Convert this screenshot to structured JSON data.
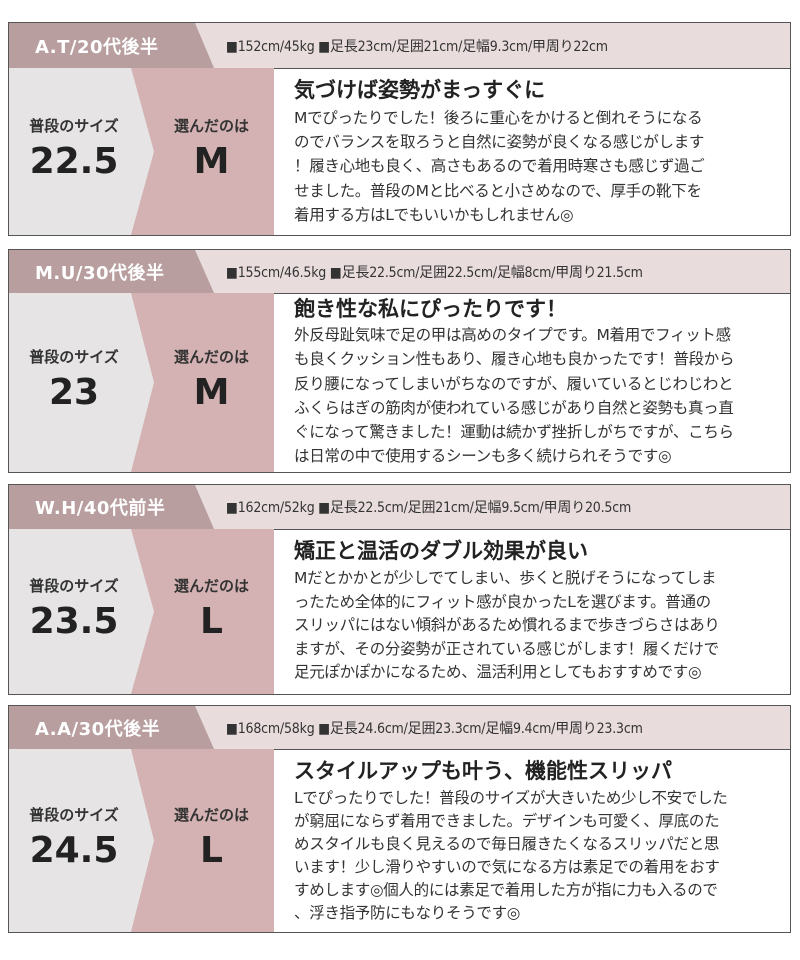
{
  "labels": {
    "usual_size": "普段のサイズ",
    "chosen": "選んだのは"
  },
  "colors": {
    "header_name_bg": "#b89e9f",
    "header_bg": "#e9dcdd",
    "usual_bg": "#e6e4e4",
    "chosen_bg": "#d4b2b3"
  },
  "reviews": [
    {
      "name": "A.T/20代後半",
      "stats": "■152cm/45kg ■足長23cm/足囲21cm/足幅9.3cm/甲周り22cm",
      "usual": "22.5",
      "chosen": "M",
      "title": "気づけば姿勢がまっすぐに",
      "lines": [
        "Mでぴったりでした！後ろに重心をかけると倒れそうになる",
        "のでバランスを取ろうと自然に姿勢が良くなる感じがします",
        "！履き心地も良く、高さもあるので着用時寒さも感じず過ご",
        "せました。普段のMと比べると小さめなので、厚手の靴下を",
        "着用する方はLでもいいかもしれません◎"
      ]
    },
    {
      "name": "M.U/30代後半",
      "stats": "■155cm/46.5kg ■足長22.5cm/足囲22.5cm/足幅8cm/甲周り21.5cm",
      "usual": "23",
      "chosen": "M",
      "title": "飽き性な私にぴったりです！",
      "lines": [
        "外反母趾気味で足の甲は高めのタイプです。M着用でフィット感",
        "も良くクッション性もあり、履き心地も良かったです！普段から",
        "反り腰になってしまいがちなのですが、履いているとじわじわと",
        "ふくらはぎの筋肉が使われている感じがあり自然と姿勢も真っ直",
        "ぐになって驚きました！運動は続かず挫折しがちですが、こちら",
        "は日常の中で使用するシーンも多く続けられそうです◎"
      ]
    },
    {
      "name": "W.H/40代前半",
      "stats": "■162cm/52kg ■足長22.5cm/足囲21cm/足幅9.5cm/甲周り20.5cm",
      "usual": "23.5",
      "chosen": "L",
      "title": "矯正と温活のダブル効果が良い",
      "lines": [
        "Mだとかかとが少しでてしまい、歩くと脱げそうになってしま",
        "ったため全体的にフィット感が良かったLを選びます。普通の",
        "スリッパにはない傾斜があるため慣れるまで歩きづらさはあり",
        "ますが、その分姿勢が正されている感じがします！履くだけで",
        "足元ぽかぽかになるため、温活利用としてもおすすめです◎"
      ]
    },
    {
      "name": "A.A/30代後半",
      "stats": "■168cm/58kg ■足長24.6cm/足囲23.3cm/足幅9.4cm/甲周り23.3cm",
      "usual": "24.5",
      "chosen": "L",
      "title": "スタイルアップも叶う、機能性スリッパ",
      "lines": [
        "Lでぴったりでした！普段のサイズが大きいため少し不安でした",
        "が窮屈にならず着用できました。デザインも可愛く、厚底のた",
        "めスタイルも良く見えるので毎日履きたくなるスリッパだと思",
        "います！少し滑りやすいので気になる方は素足での着用をおす",
        "すめします◎個人的には素足で着用した方が指に力も入るので",
        "、浮き指予防にもなりそうです◎"
      ]
    }
  ]
}
